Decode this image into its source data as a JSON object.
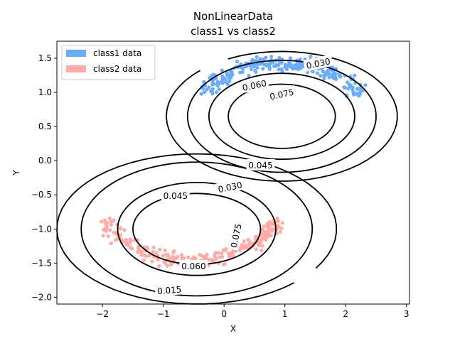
{
  "chart_data": {
    "type": "scatter",
    "title_line1": "NonLinearData",
    "title_line2": "class1 vs  class2",
    "xlabel": "X",
    "ylabel": "Y",
    "xlim": [
      -2.75,
      3.05
    ],
    "ylim": [
      -2.1,
      1.75
    ],
    "xticks": [
      -2,
      -1,
      0,
      1,
      2,
      3
    ],
    "yticks": [
      -2.0,
      -1.5,
      -1.0,
      -0.5,
      0.0,
      0.5,
      1.0,
      1.5
    ],
    "xtick_labels": [
      "−2",
      "−1",
      "0",
      "1",
      "2",
      "3"
    ],
    "ytick_labels": [
      "−2.0",
      "−1.5",
      "−1.0",
      "−0.5",
      "0.0",
      "0.5",
      "1.0",
      "1.5"
    ],
    "grid": false,
    "legend_position": "upper-left",
    "series": [
      {
        "name": "class1 data",
        "color": "#6aacff",
        "arc": {
          "cx": 0.95,
          "cy": 0.5,
          "r": 1.5,
          "t_from": 0.55,
          "t_to": 2.6,
          "noise": 0.12
        }
      },
      {
        "name": "class2 data",
        "color": "#ffaaa4",
        "arc": {
          "cx": -0.55,
          "cy": -0.5,
          "r": 1.55,
          "t_from": 3.55,
          "t_to": 5.9,
          "noise": 0.12
        }
      }
    ],
    "contours": [
      {
        "kind": "outer",
        "labels": [
          {
            "text": "0.030",
            "x": 1.55,
            "y": 1.42,
            "angle": 12
          },
          {
            "text": "0.030",
            "x": 0.1,
            "y": -0.39,
            "angle": 12
          },
          {
            "text": "0.015",
            "x": -0.9,
            "y": -1.9,
            "angle": 5
          }
        ]
      },
      {
        "kind": "upper-ring-1",
        "center": [
          0.95,
          0.65
        ],
        "rx": 1.55,
        "ry": 0.82,
        "labels": [
          {
            "text": "0.045",
            "x": 0.6,
            "y": -0.07,
            "angle": 0
          }
        ]
      },
      {
        "kind": "upper-ring-2",
        "center": [
          0.95,
          0.65
        ],
        "rx": 1.2,
        "ry": 0.63,
        "labels": [
          {
            "text": "0.060",
            "x": 0.5,
            "y": 1.1,
            "angle": 12
          }
        ]
      },
      {
        "kind": "upper-ring-3",
        "center": [
          0.95,
          0.65
        ],
        "rx": 0.88,
        "ry": 0.47,
        "labels": [
          {
            "text": "0.075",
            "x": 0.95,
            "y": 0.97,
            "angle": 12
          }
        ]
      },
      {
        "kind": "lower-ring-1",
        "center": [
          -0.45,
          -1.0
        ],
        "rx": 1.9,
        "ry": 0.98,
        "labels": [
          {
            "text": "0.045",
            "x": -0.8,
            "y": -0.52,
            "angle": 0
          }
        ]
      },
      {
        "kind": "lower-ring-2",
        "center": [
          -0.45,
          -1.0
        ],
        "rx": 1.3,
        "ry": 0.68,
        "labels": [
          {
            "text": "0.060",
            "x": -0.5,
            "y": -1.55,
            "angle": 0
          }
        ]
      },
      {
        "kind": "lower-ring-3",
        "center": [
          -0.45,
          -1.0
        ],
        "rx": 1.05,
        "ry": 0.52,
        "labels": [
          {
            "text": "0.075",
            "x": 0.2,
            "y": -1.1,
            "angle": 78
          }
        ]
      }
    ]
  }
}
